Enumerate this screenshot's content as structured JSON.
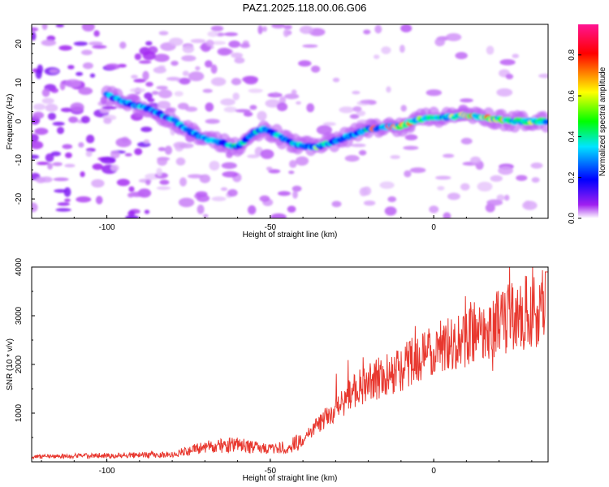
{
  "title": "PAZ1.2025.118.00.06.G06",
  "chart_data": [
    {
      "type": "heatmap",
      "xlabel": "Height of straight line (km)",
      "ylabel": "Frequency (Hz)",
      "xlim": [
        -123,
        35
      ],
      "ylim": [
        -25,
        25
      ],
      "xticks": [
        -100,
        -50,
        0
      ],
      "yticks": [
        -20,
        -10,
        0,
        10,
        20
      ],
      "colorbar": {
        "label": "Normalized spectral amplitude",
        "range": [
          0,
          0.95
        ],
        "ticks": [
          0.0,
          0.2,
          0.4,
          0.6,
          0.8
        ],
        "colors": [
          "#ffffff",
          "#a020f0",
          "#0000ff",
          "#00e5ff",
          "#00ff00",
          "#ffff00",
          "#ff0000",
          "#ff1493"
        ]
      },
      "ridge": {
        "x": [
          -123,
          -100,
          -95,
          -88,
          -80,
          -75,
          -70,
          -65,
          -60,
          -55,
          -52,
          -48,
          -44,
          -40,
          -35,
          -30,
          -25,
          -20,
          -15,
          -10,
          -5,
          0,
          5,
          10,
          15,
          20,
          25,
          30,
          35
        ],
        "y": [
          7,
          7,
          5,
          3.5,
          0.5,
          -2.5,
          -4.5,
          -5.5,
          -6.5,
          -3,
          -2,
          -3.5,
          -5.5,
          -6.5,
          -6.5,
          -5,
          -3.5,
          -2,
          -1.5,
          -1.2,
          0.5,
          1,
          1.2,
          1.5,
          1,
          0.5,
          0,
          0,
          0
        ]
      }
    },
    {
      "type": "line",
      "xlabel": "Height of straight line (km)",
      "ylabel": "SNR (10 * v/v)",
      "xlim": [
        -123,
        35
      ],
      "ylim": [
        0,
        4000
      ],
      "xticks": [
        -100,
        -50,
        0
      ],
      "yticks": [
        1000,
        2000,
        3000,
        4000
      ],
      "color": "#e8382f",
      "trend": {
        "x": [
          -123,
          -100,
          -80,
          -70,
          -60,
          -50,
          -45,
          -40,
          -35,
          -30,
          -25,
          -20,
          -15,
          -10,
          -5,
          0,
          5,
          10,
          15,
          20,
          25,
          30,
          35
        ],
        "y": [
          100,
          130,
          150,
          300,
          350,
          250,
          300,
          450,
          800,
          1100,
          1400,
          1650,
          1750,
          1900,
          2150,
          2250,
          2450,
          2600,
          2700,
          2900,
          3000,
          3100,
          3200
        ]
      }
    }
  ]
}
